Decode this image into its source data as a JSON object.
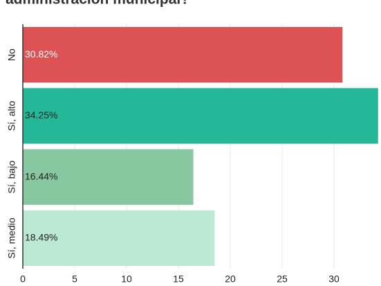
{
  "chart_data": {
    "type": "hbar",
    "title": "administración municipal?",
    "categories": [
      "No",
      "Sí, alto",
      "Sí, bajo",
      "Sí, medio"
    ],
    "values": [
      30.82,
      34.25,
      16.44,
      18.49
    ],
    "value_labels": [
      "30.82%",
      "34.25%",
      "16.44%",
      "18.49%"
    ],
    "colors": [
      "#dd5254",
      "#24b899",
      "#87c8a1",
      "#bce9d4"
    ],
    "xlim": [
      0,
      35
    ],
    "xticks": [
      0,
      5,
      10,
      15,
      20,
      25,
      30,
      35
    ],
    "grid": true
  }
}
